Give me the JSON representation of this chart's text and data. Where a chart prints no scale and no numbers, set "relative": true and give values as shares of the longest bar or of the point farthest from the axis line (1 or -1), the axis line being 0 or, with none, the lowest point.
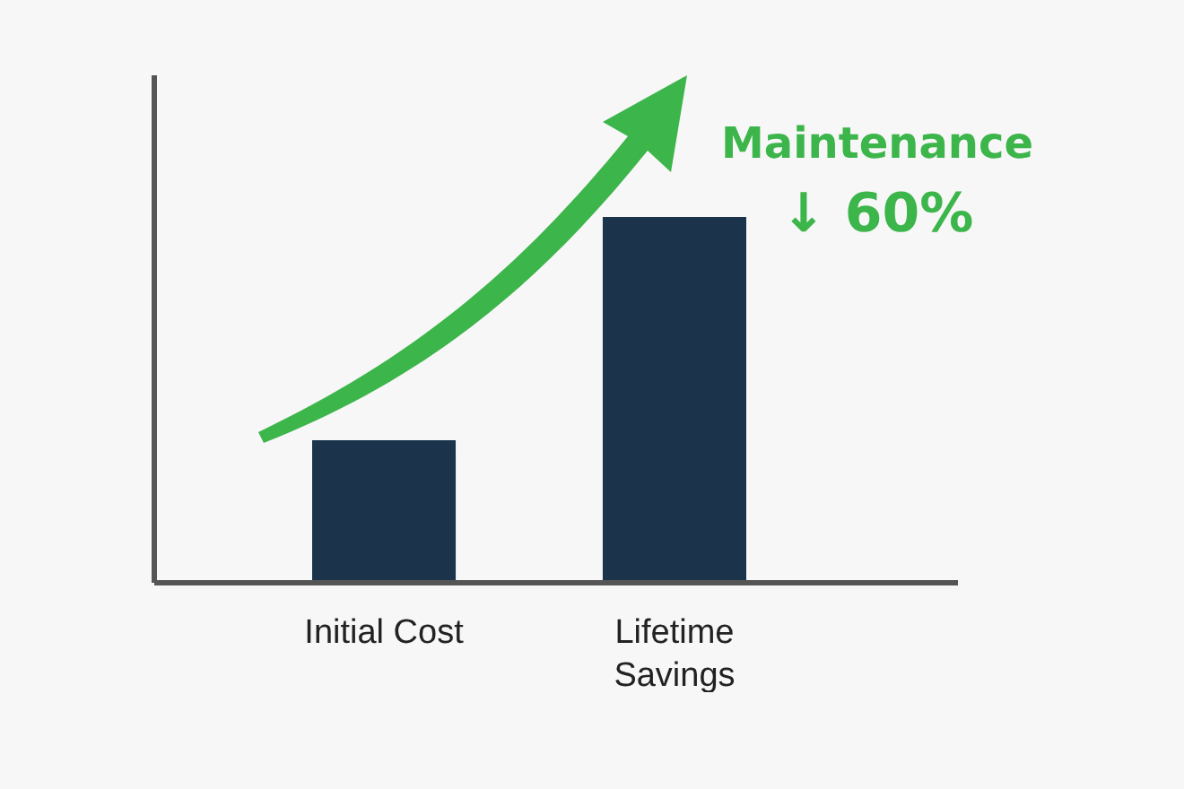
{
  "chart_data": {
    "type": "bar",
    "relative": true,
    "categories": [
      "Initial Cost",
      "Lifetime Savings"
    ],
    "values": [
      0.39,
      1
    ],
    "color": "#1b344c",
    "annotations": [
      "Maintenance",
      "↓ 60%"
    ]
  }
}
